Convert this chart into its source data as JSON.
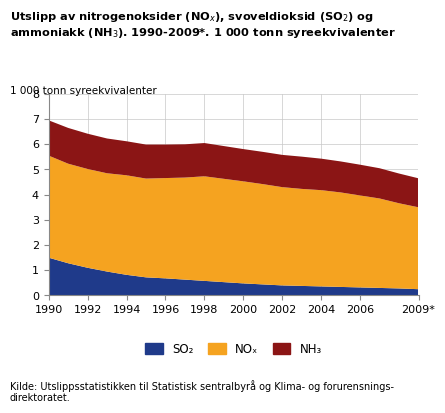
{
  "years": [
    1990,
    1991,
    1992,
    1993,
    1994,
    1995,
    1996,
    1997,
    1998,
    1999,
    2000,
    2001,
    2002,
    2003,
    2004,
    2005,
    2006,
    2007,
    2008,
    2009
  ],
  "SO2": [
    1.5,
    1.28,
    1.1,
    0.95,
    0.82,
    0.72,
    0.68,
    0.63,
    0.58,
    0.53,
    0.48,
    0.44,
    0.4,
    0.38,
    0.36,
    0.34,
    0.32,
    0.3,
    0.28,
    0.25
  ],
  "NOx": [
    4.05,
    3.95,
    3.92,
    3.9,
    3.95,
    3.92,
    3.98,
    4.05,
    4.15,
    4.1,
    4.05,
    3.98,
    3.9,
    3.85,
    3.82,
    3.75,
    3.65,
    3.55,
    3.38,
    3.25
  ],
  "NH3": [
    1.4,
    1.42,
    1.4,
    1.38,
    1.35,
    1.35,
    1.33,
    1.32,
    1.32,
    1.3,
    1.28,
    1.28,
    1.28,
    1.28,
    1.25,
    1.23,
    1.22,
    1.2,
    1.18,
    1.15
  ],
  "SO2_color": "#1f3a8a",
  "NOx_color": "#f5a320",
  "NH3_color": "#8b1515",
  "ylabel": "1 000 tonn syreekvivalenter",
  "ylim": [
    0,
    8
  ],
  "yticks": [
    0,
    1,
    2,
    3,
    4,
    5,
    6,
    7,
    8
  ],
  "xlabel_ticks": [
    "1990",
    "1992",
    "1994",
    "1996",
    "1998",
    "2000",
    "2002",
    "2004",
    "2006",
    "2009*"
  ],
  "xlabel_tick_years": [
    1990,
    1992,
    1994,
    1996,
    1998,
    2000,
    2002,
    2004,
    2006,
    2009
  ],
  "legend_labels": [
    "SO₂",
    "NOₓ",
    "NH₃"
  ],
  "source_text": "Kilde: Utslippsstatistikken til Statistisk sentralbyrå og Klima- og forurensnings-\ndirektoratet.",
  "background_color": "#ffffff",
  "grid_color": "#c8c8c8"
}
